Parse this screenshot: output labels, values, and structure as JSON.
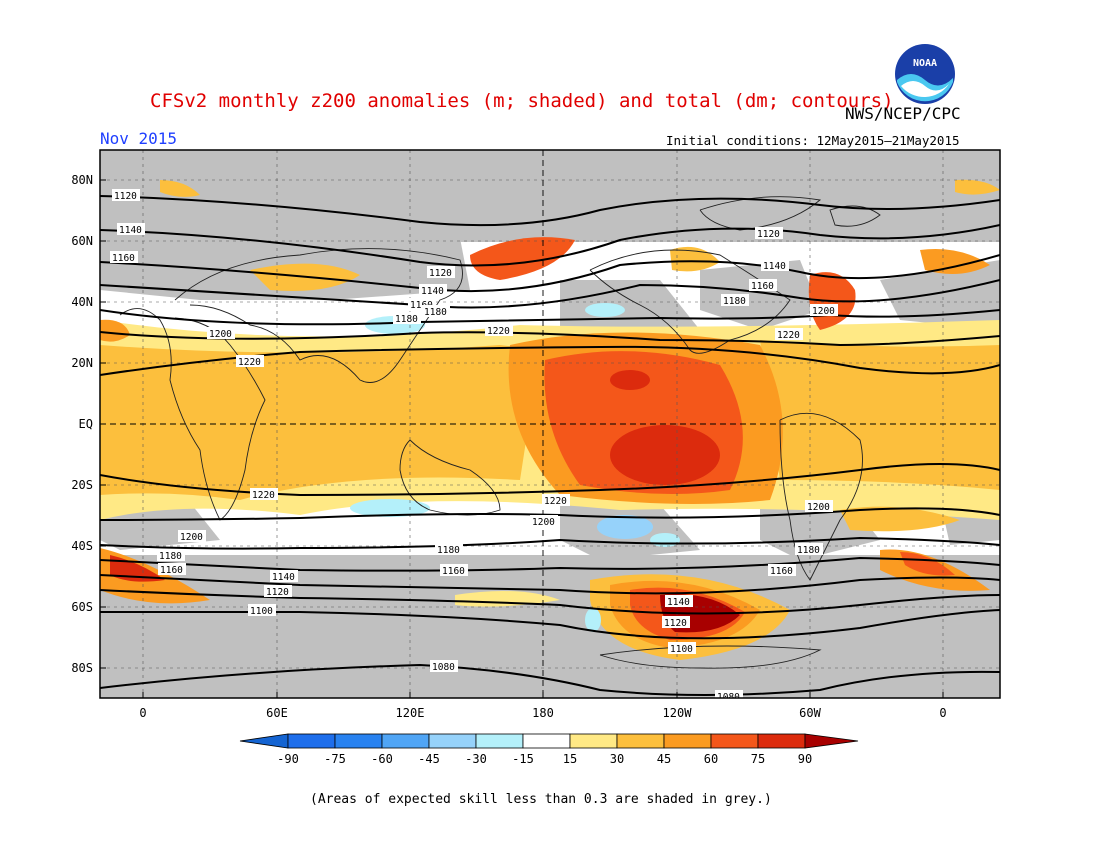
{
  "header": {
    "title": "CFSv2 monthly z200 anomalies (m; shaded) and total (dm; contours)",
    "agency": "NWS/NCEP/CPC",
    "logo_text": "NOAA",
    "date": "Nov 2015",
    "initial_conditions": "Initial conditions: 12May2015–21May2015"
  },
  "map": {
    "lat_labels": [
      "80N",
      "60N",
      "40N",
      "20N",
      "EQ",
      "20S",
      "40S",
      "60S",
      "80S"
    ],
    "lon_labels": [
      "0",
      "60E",
      "120E",
      "180",
      "120W",
      "60W",
      "0"
    ],
    "contour_labels": [
      "1120",
      "1140",
      "1160",
      "1120",
      "1140",
      "1160",
      "1180",
      "1200",
      "1220",
      "1120",
      "1140",
      "1180",
      "1160",
      "1200",
      "1220",
      "1180",
      "1220",
      "1220",
      "1200",
      "1220",
      "1200",
      "1200",
      "1180",
      "1180",
      "1160",
      "1160",
      "1140",
      "1120",
      "1100",
      "1140",
      "1120",
      "1100",
      "1080",
      "1080"
    ],
    "colors": {
      "grey": "#c0c0c0",
      "y15": "#ffe985",
      "o30": "#fcbf3d",
      "o45": "#fb9b21",
      "r60": "#f4571a",
      "r75": "#dc2b0d",
      "r90": "#a80000",
      "b15": "#b4f0fa",
      "b30": "#96d2fa",
      "b45": "#50a5f5"
    }
  },
  "colorbar": {
    "ticks": [
      "-90",
      "-75",
      "-60",
      "-45",
      "-30",
      "-15",
      "15",
      "30",
      "45",
      "60",
      "75",
      "90"
    ],
    "colors": [
      "#1464d2",
      "#1e6eeb",
      "#2882f0",
      "#50a5f5",
      "#96d2fa",
      "#b4f0fa",
      "#ffffff",
      "#ffe985",
      "#fcbf3d",
      "#fb9b21",
      "#f4571a",
      "#dc2b0d",
      "#a80000"
    ]
  },
  "footnote": "(Areas of expected skill less than 0.3 are shaded in grey.)"
}
